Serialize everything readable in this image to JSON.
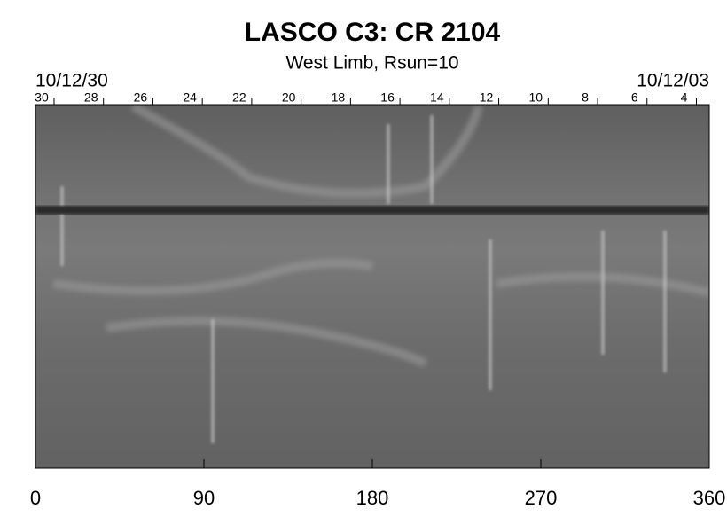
{
  "chart_data": {
    "type": "synoptic-map",
    "title": "LASCO C3: CR 2104",
    "subtitle": "West Limb, Rsun=10",
    "date_left": "10/12/30",
    "date_right": "10/12/03",
    "xlim": [
      0,
      360
    ],
    "xticks": [
      0,
      90,
      180,
      270,
      360
    ],
    "x2ticks": [
      {
        "value": 3.3,
        "label": "30"
      },
      {
        "value": 29.7,
        "label": "28"
      },
      {
        "value": 56.1,
        "label": "26"
      },
      {
        "value": 82.5,
        "label": "24"
      },
      {
        "value": 108.9,
        "label": "22"
      },
      {
        "value": 135.3,
        "label": "20"
      },
      {
        "value": 161.7,
        "label": "18"
      },
      {
        "value": 188.1,
        "label": "16"
      },
      {
        "value": 214.5,
        "label": "14"
      },
      {
        "value": 240.9,
        "label": "12"
      },
      {
        "value": 267.3,
        "label": "10"
      },
      {
        "value": 293.7,
        "label": "8"
      },
      {
        "value": 320.1,
        "label": "6"
      },
      {
        "value": 346.5,
        "label": "4"
      }
    ]
  }
}
